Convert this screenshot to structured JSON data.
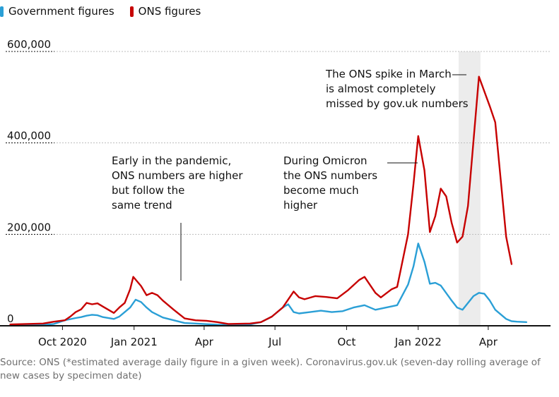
{
  "legend": {
    "government": {
      "label": "Government figures",
      "color": "#2a9fd6"
    },
    "ons": {
      "label": "ONS figures",
      "color": "#c70000"
    }
  },
  "chart_data": {
    "type": "line",
    "title": "",
    "xlabel": "",
    "ylabel": "",
    "ylim": [
      0,
      600000
    ],
    "y_ticks": [
      {
        "value": 0,
        "label": "0"
      },
      {
        "value": 200000,
        "label": "200,000"
      },
      {
        "value": 400000,
        "label": "400,000"
      },
      {
        "value": 600000,
        "label": "600,000"
      }
    ],
    "x_domain": [
      "2020-07-20",
      "2022-06-20"
    ],
    "x_ticks": [
      {
        "date": "2020-10-01",
        "label": "Oct 2020"
      },
      {
        "date": "2021-01-01",
        "label": "Jan 2021"
      },
      {
        "date": "2021-04-01",
        "label": "Apr"
      },
      {
        "date": "2021-07-01",
        "label": "Jul"
      },
      {
        "date": "2021-10-01",
        "label": "Oct"
      },
      {
        "date": "2022-01-01",
        "label": "Jan 2022"
      },
      {
        "date": "2022-04-01",
        "label": "Apr"
      }
    ],
    "highlight_range": [
      "2022-02-22",
      "2022-03-22"
    ],
    "series": [
      {
        "name": "ONS figures",
        "color": "#c70000",
        "points": [
          [
            "2020-07-26",
            3000
          ],
          [
            "2020-08-16",
            4000
          ],
          [
            "2020-09-06",
            5000
          ],
          [
            "2020-09-20",
            9000
          ],
          [
            "2020-10-04",
            12000
          ],
          [
            "2020-10-11",
            20000
          ],
          [
            "2020-10-18",
            30000
          ],
          [
            "2020-10-25",
            36000
          ],
          [
            "2020-11-01",
            50000
          ],
          [
            "2020-11-08",
            47000
          ],
          [
            "2020-11-15",
            49000
          ],
          [
            "2020-11-22",
            42000
          ],
          [
            "2020-12-06",
            28000
          ],
          [
            "2020-12-13",
            40000
          ],
          [
            "2020-12-20",
            50000
          ],
          [
            "2020-12-27",
            80000
          ],
          [
            "2020-12-31",
            107000
          ],
          [
            "2021-01-10",
            87000
          ],
          [
            "2021-01-17",
            67000
          ],
          [
            "2021-01-24",
            72000
          ],
          [
            "2021-01-31",
            67000
          ],
          [
            "2021-02-07",
            55000
          ],
          [
            "2021-02-21",
            35000
          ],
          [
            "2021-03-07",
            16000
          ],
          [
            "2021-03-21",
            12000
          ],
          [
            "2021-04-04",
            11000
          ],
          [
            "2021-04-18",
            8000
          ],
          [
            "2021-05-02",
            4000
          ],
          [
            "2021-05-30",
            5000
          ],
          [
            "2021-06-13",
            8000
          ],
          [
            "2021-06-27",
            20000
          ],
          [
            "2021-07-11",
            40000
          ],
          [
            "2021-07-25",
            75000
          ],
          [
            "2021-08-01",
            62000
          ],
          [
            "2021-08-08",
            58000
          ],
          [
            "2021-08-22",
            65000
          ],
          [
            "2021-09-05",
            63000
          ],
          [
            "2021-09-19",
            60000
          ],
          [
            "2021-10-03",
            78000
          ],
          [
            "2021-10-17",
            100000
          ],
          [
            "2021-10-24",
            107000
          ],
          [
            "2021-11-07",
            72000
          ],
          [
            "2021-11-14",
            62000
          ],
          [
            "2021-11-28",
            80000
          ],
          [
            "2021-12-05",
            85000
          ],
          [
            "2021-12-19",
            200000
          ],
          [
            "2021-12-26",
            310000
          ],
          [
            "2022-01-01",
            415000
          ],
          [
            "2022-01-09",
            340000
          ],
          [
            "2022-01-16",
            205000
          ],
          [
            "2022-01-23",
            240000
          ],
          [
            "2022-01-30",
            300000
          ],
          [
            "2022-02-06",
            283000
          ],
          [
            "2022-02-13",
            225000
          ],
          [
            "2022-02-20",
            182000
          ],
          [
            "2022-02-27",
            195000
          ],
          [
            "2022-03-06",
            262000
          ],
          [
            "2022-03-20",
            545000
          ],
          [
            "2022-04-03",
            480000
          ],
          [
            "2022-04-10",
            445000
          ],
          [
            "2022-04-24",
            195000
          ],
          [
            "2022-05-01",
            135000
          ]
        ]
      },
      {
        "name": "Government figures",
        "color": "#2a9fd6",
        "points": [
          [
            "2020-07-26",
            1000
          ],
          [
            "2020-08-16",
            1200
          ],
          [
            "2020-09-06",
            2000
          ],
          [
            "2020-09-20",
            4000
          ],
          [
            "2020-10-04",
            12000
          ],
          [
            "2020-10-18",
            17000
          ],
          [
            "2020-10-25",
            19000
          ],
          [
            "2020-11-01",
            22000
          ],
          [
            "2020-11-08",
            24000
          ],
          [
            "2020-11-15",
            23000
          ],
          [
            "2020-11-22",
            19000
          ],
          [
            "2020-12-06",
            15000
          ],
          [
            "2020-12-13",
            20000
          ],
          [
            "2020-12-20",
            30000
          ],
          [
            "2020-12-27",
            40000
          ],
          [
            "2021-01-03",
            57000
          ],
          [
            "2021-01-10",
            52000
          ],
          [
            "2021-01-17",
            40000
          ],
          [
            "2021-01-24",
            30000
          ],
          [
            "2021-02-07",
            18000
          ],
          [
            "2021-02-21",
            12000
          ],
          [
            "2021-03-07",
            6000
          ],
          [
            "2021-03-21",
            5000
          ],
          [
            "2021-04-04",
            3500
          ],
          [
            "2021-04-18",
            2500
          ],
          [
            "2021-05-02",
            2000
          ],
          [
            "2021-05-30",
            3000
          ],
          [
            "2021-06-13",
            8000
          ],
          [
            "2021-06-27",
            20000
          ],
          [
            "2021-07-11",
            40000
          ],
          [
            "2021-07-18",
            47000
          ],
          [
            "2021-07-25",
            30000
          ],
          [
            "2021-08-01",
            27000
          ],
          [
            "2021-08-15",
            30000
          ],
          [
            "2021-08-29",
            33000
          ],
          [
            "2021-09-12",
            30000
          ],
          [
            "2021-09-26",
            32000
          ],
          [
            "2021-10-10",
            40000
          ],
          [
            "2021-10-24",
            45000
          ],
          [
            "2021-11-07",
            35000
          ],
          [
            "2021-11-21",
            40000
          ],
          [
            "2021-12-05",
            45000
          ],
          [
            "2021-12-19",
            90000
          ],
          [
            "2021-12-26",
            130000
          ],
          [
            "2022-01-01",
            180000
          ],
          [
            "2022-01-09",
            140000
          ],
          [
            "2022-01-16",
            92000
          ],
          [
            "2022-01-23",
            94000
          ],
          [
            "2022-01-30",
            88000
          ],
          [
            "2022-02-13",
            55000
          ],
          [
            "2022-02-20",
            40000
          ],
          [
            "2022-02-27",
            35000
          ],
          [
            "2022-03-06",
            50000
          ],
          [
            "2022-03-13",
            65000
          ],
          [
            "2022-03-20",
            72000
          ],
          [
            "2022-03-27",
            70000
          ],
          [
            "2022-04-03",
            55000
          ],
          [
            "2022-04-10",
            35000
          ],
          [
            "2022-04-24",
            15000
          ],
          [
            "2022-05-01",
            10000
          ],
          [
            "2022-05-08",
            9000
          ],
          [
            "2022-05-20",
            8000
          ]
        ]
      }
    ],
    "annotations": [
      {
        "lines": [
          "Early in the pandemic,",
          "ONS numbers are higher",
          "but follow the",
          "same trend"
        ]
      },
      {
        "lines": [
          "During Omicron",
          "the ONS numbers",
          "become much",
          "higher"
        ]
      },
      {
        "lines": [
          "The ONS spike in March",
          "is almost completely",
          "missed by gov.uk numbers"
        ]
      }
    ]
  },
  "source": "Source: ONS (*estimated average daily figure in a given week). Coronavirus.gov.uk (seven-day rolling average of new cases by specimen date)"
}
